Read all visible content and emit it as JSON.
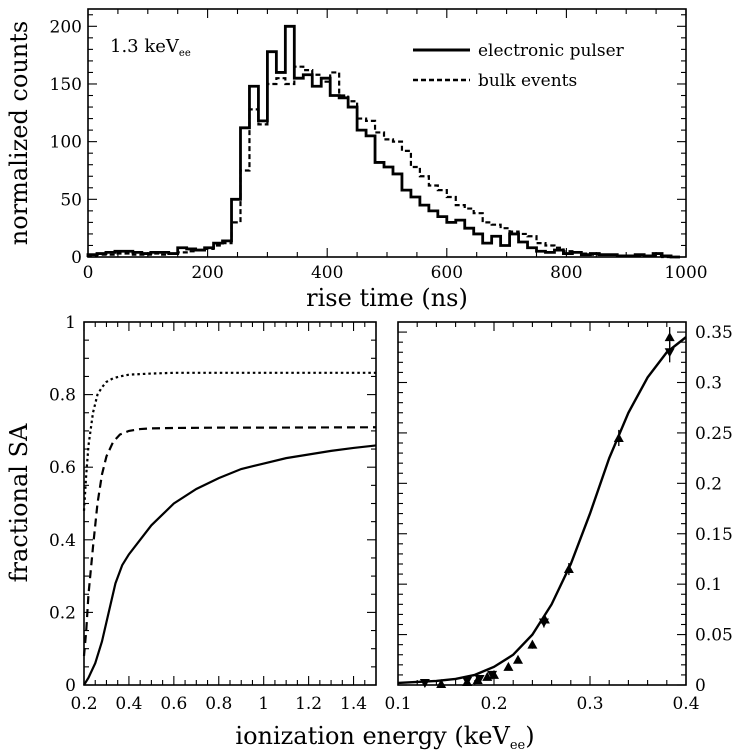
{
  "figure": {
    "xlabel_shared": "ionization energy (keV",
    "xlabel_shared_sub": "ee",
    "xlabel_shared_close": ")"
  },
  "chart_data": [
    {
      "type": "line",
      "panel": "top",
      "title": "",
      "annotation": {
        "text": "1.3 keV",
        "sub": "ee"
      },
      "xlabel": "rise time (ns)",
      "ylabel": "normalized counts",
      "xlim": [
        0,
        1000
      ],
      "ylim": [
        0,
        215
      ],
      "xticks": [
        0,
        200,
        400,
        600,
        800,
        1000
      ],
      "yticks": [
        0,
        50,
        100,
        150,
        200
      ],
      "bin_edges": [
        0,
        15,
        30,
        45,
        60,
        75,
        90,
        105,
        120,
        135,
        150,
        165,
        180,
        195,
        210,
        225,
        240,
        255,
        270,
        285,
        300,
        315,
        330,
        345,
        360,
        375,
        390,
        405,
        420,
        435,
        450,
        465,
        480,
        495,
        510,
        525,
        540,
        555,
        570,
        585,
        600,
        615,
        630,
        645,
        660,
        675,
        690,
        705,
        720,
        735,
        750,
        765,
        780,
        795,
        810,
        825,
        840,
        855,
        870,
        885,
        900,
        915,
        930,
        945,
        960,
        975,
        990
      ],
      "series": [
        {
          "name": "electronic pulser",
          "style": "solid",
          "values": [
            2,
            3,
            4,
            5,
            5,
            4,
            3,
            4,
            4,
            3,
            8,
            7,
            6,
            8,
            12,
            14,
            50,
            112,
            148,
            118,
            178,
            160,
            200,
            155,
            158,
            148,
            155,
            140,
            138,
            130,
            110,
            105,
            82,
            78,
            72,
            58,
            52,
            45,
            40,
            35,
            30,
            32,
            25,
            20,
            12,
            18,
            10,
            20,
            13,
            8,
            5,
            4,
            6,
            3,
            4,
            2,
            3,
            2,
            2,
            1,
            1,
            2,
            1,
            3,
            1,
            0
          ]
        },
        {
          "name": "bulk events",
          "style": "dashed",
          "values": [
            1,
            2,
            2,
            3,
            3,
            2,
            2,
            3,
            2,
            3,
            4,
            5,
            6,
            7,
            10,
            12,
            30,
            75,
            128,
            115,
            150,
            155,
            150,
            165,
            162,
            158,
            152,
            160,
            140,
            135,
            120,
            118,
            108,
            102,
            100,
            92,
            78,
            70,
            62,
            58,
            52,
            45,
            42,
            38,
            30,
            28,
            25,
            22,
            20,
            18,
            12,
            10,
            8,
            5,
            4,
            3,
            2,
            2,
            2,
            1,
            1,
            1,
            1,
            1,
            0,
            0
          ]
        }
      ]
    },
    {
      "type": "line",
      "panel": "bottom-left",
      "xlabel": "",
      "ylabel": "fractional SA",
      "xlim": [
        0.2,
        1.5
      ],
      "ylim": [
        0,
        1
      ],
      "xticks": [
        0.2,
        0.4,
        0.6,
        0.8,
        1,
        1.2,
        1.4
      ],
      "xtick_labels": [
        "0.2",
        "0.4",
        "0.6",
        "0.8",
        "1",
        "1.2",
        "1.4"
      ],
      "yticks": [
        0,
        0.2,
        0.4,
        0.6,
        0.8,
        1
      ],
      "ytick_labels": [
        "0",
        "0.2",
        "0.4",
        "0.6",
        "0.8",
        "1"
      ],
      "series": [
        {
          "name": "solid curve",
          "style": "solid",
          "x": [
            0.2,
            0.22,
            0.25,
            0.28,
            0.31,
            0.34,
            0.37,
            0.4,
            0.45,
            0.5,
            0.6,
            0.7,
            0.8,
            0.9,
            1.0,
            1.1,
            1.2,
            1.3,
            1.4,
            1.5
          ],
          "y": [
            0.0,
            0.02,
            0.06,
            0.12,
            0.2,
            0.28,
            0.33,
            0.36,
            0.4,
            0.44,
            0.5,
            0.54,
            0.57,
            0.595,
            0.61,
            0.625,
            0.635,
            0.645,
            0.653,
            0.66
          ]
        },
        {
          "name": "dashed curve",
          "style": "dashed",
          "x": [
            0.2,
            0.21,
            0.22,
            0.24,
            0.26,
            0.28,
            0.3,
            0.33,
            0.36,
            0.4,
            0.45,
            0.5,
            0.6,
            0.8,
            1.0,
            1.5
          ],
          "y": [
            0.08,
            0.15,
            0.25,
            0.38,
            0.5,
            0.58,
            0.63,
            0.67,
            0.69,
            0.7,
            0.705,
            0.707,
            0.708,
            0.709,
            0.709,
            0.71
          ]
        },
        {
          "name": "dotted curve",
          "style": "dotted",
          "x": [
            0.2,
            0.21,
            0.22,
            0.24,
            0.26,
            0.28,
            0.3,
            0.33,
            0.36,
            0.4,
            0.5,
            0.6,
            0.8,
            1.0,
            1.5
          ],
          "y": [
            0.48,
            0.58,
            0.66,
            0.75,
            0.8,
            0.82,
            0.835,
            0.845,
            0.85,
            0.855,
            0.858,
            0.86,
            0.86,
            0.86,
            0.86
          ]
        }
      ]
    },
    {
      "type": "scatter",
      "panel": "bottom-right",
      "xlabel": "",
      "ylabel": "",
      "xlim": [
        0.1,
        0.4
      ],
      "ylim": [
        0,
        0.36
      ],
      "xticks": [
        0.1,
        0.2,
        0.3,
        0.4
      ],
      "xtick_labels": [
        "0.1",
        "0.2",
        "0.3",
        "0.4"
      ],
      "yticks": [
        0,
        0.05,
        0.1,
        0.15,
        0.2,
        0.25,
        0.3,
        0.35
      ],
      "ytick_labels": [
        "0",
        "0.05",
        "0.1",
        "0.15",
        "0.2",
        "0.25",
        "0.3",
        "0.35"
      ],
      "fit": {
        "name": "sigmoid fit",
        "style": "solid",
        "x": [
          0.1,
          0.12,
          0.14,
          0.16,
          0.18,
          0.2,
          0.22,
          0.24,
          0.26,
          0.28,
          0.3,
          0.32,
          0.34,
          0.36,
          0.38,
          0.4
        ],
        "y": [
          0.002,
          0.003,
          0.004,
          0.006,
          0.01,
          0.018,
          0.03,
          0.05,
          0.08,
          0.12,
          0.17,
          0.225,
          0.27,
          0.305,
          0.33,
          0.345
        ]
      },
      "series": [
        {
          "name": "up triangles",
          "marker": "triangle-up",
          "x": [
            0.145,
            0.172,
            0.183,
            0.193,
            0.2,
            0.215,
            0.225,
            0.24,
            0.253,
            0.278,
            0.33,
            0.383
          ],
          "y": [
            0.001,
            0.003,
            0.005,
            0.008,
            0.01,
            0.018,
            0.025,
            0.04,
            0.065,
            0.115,
            0.245,
            0.345
          ],
          "err": [
            0.002,
            0.002,
            0.002,
            0.002,
            0.003,
            0.003,
            0.003,
            0.004,
            0.005,
            0.006,
            0.008,
            0.01
          ]
        },
        {
          "name": "down triangles",
          "marker": "triangle-down",
          "x": [
            0.128,
            0.172,
            0.185,
            0.198,
            0.252,
            0.383
          ],
          "y": [
            0.002,
            0.004,
            0.006,
            0.01,
            0.062,
            0.33
          ],
          "err": [
            0.002,
            0.002,
            0.002,
            0.003,
            0.005,
            0.01
          ]
        }
      ]
    }
  ]
}
